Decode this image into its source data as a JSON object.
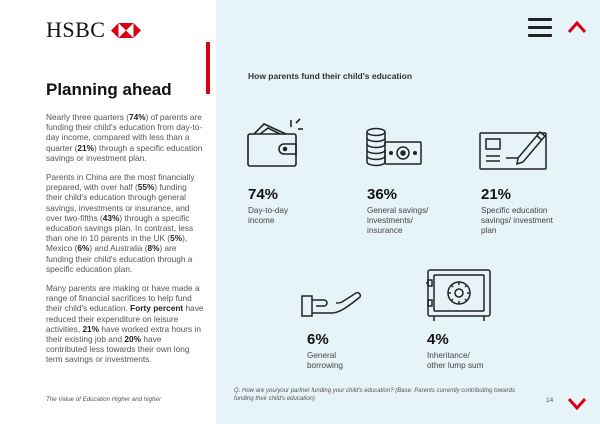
{
  "brand": {
    "name": "HSBC",
    "accent": "#db0011"
  },
  "heading": "Planning ahead",
  "paragraphs": [
    {
      "segments": [
        {
          "t": "Nearly three quarters ("
        },
        {
          "t": "74%",
          "b": true
        },
        {
          "t": ") of parents are funding their child's education from day-to-day income, compared with less than a quarter ("
        },
        {
          "t": "21%",
          "b": true
        },
        {
          "t": ") through a specific education savings or investment plan."
        }
      ]
    },
    {
      "segments": [
        {
          "t": "Parents in China are the most financially prepared, with over half ("
        },
        {
          "t": "55%",
          "b": true
        },
        {
          "t": ") funding their child's education through general savings, investments or insurance, and over two-fifths ("
        },
        {
          "t": "43%",
          "b": true
        },
        {
          "t": ") through a specific education savings plan. In contrast, less than one in 10 parents in the UK ("
        },
        {
          "t": "5%",
          "b": true
        },
        {
          "t": "), Mexico ("
        },
        {
          "t": "6%",
          "b": true
        },
        {
          "t": ") and Australia ("
        },
        {
          "t": "8%",
          "b": true
        },
        {
          "t": ") are funding their child's education through a specific education plan."
        }
      ]
    },
    {
      "segments": [
        {
          "t": "Many parents are making or have made a range of financial sacrifices to help fund their child's education. "
        },
        {
          "t": "Forty percent",
          "b": true
        },
        {
          "t": " have reduced their expenditure on leisure activities, "
        },
        {
          "t": "21%",
          "b": true
        },
        {
          "t": " have worked extra hours in their existing job and "
        },
        {
          "t": "20%",
          "b": true
        },
        {
          "t": " have contributed less towards their own long term savings or investments."
        }
      ]
    }
  ],
  "footer_left": "The Value of Education Higher and higher",
  "section_title": "How parents fund their child's education",
  "stats": [
    {
      "pct": "74%",
      "label": "Day-to-day income",
      "icon": "wallet-icon"
    },
    {
      "pct": "36%",
      "label": "General savings/ investments/ insurance",
      "icon": "coins-banknote-icon"
    },
    {
      "pct": "21%",
      "label": "Specific education savings/ investment plan",
      "icon": "document-pen-icon"
    },
    {
      "pct": "6%",
      "label": "General borrowing",
      "icon": "open-hand-icon"
    },
    {
      "pct": "4%",
      "label": "Inheritance/ other lump sum",
      "icon": "safe-icon"
    }
  ],
  "question_note": "Q. How are you/your partner funding your child's education? (Base: Parents currently contributing towards funding their child's education)",
  "page_number": "14",
  "nav": {
    "menu": "menu-icon",
    "up": "chevron-up-icon",
    "down": "chevron-down-icon"
  }
}
